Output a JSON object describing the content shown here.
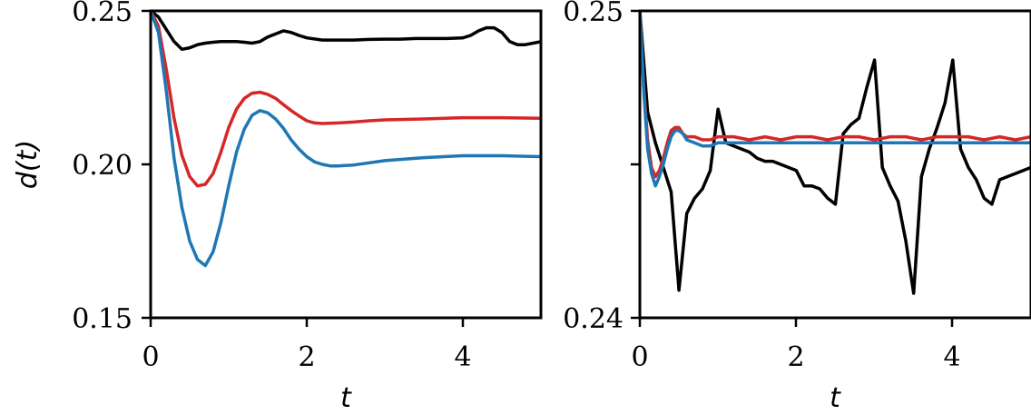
{
  "chart_data": [
    {
      "type": "line",
      "xlabel": "t",
      "ylabel": "d(t)",
      "xlim": [
        0,
        5
      ],
      "ylim": [
        0.15,
        0.25
      ],
      "x_ticks": [
        0,
        2,
        4
      ],
      "x_tick_labels": [
        "0",
        "2",
        "4"
      ],
      "y_ticks": [
        0.15,
        0.2,
        0.25
      ],
      "y_tick_labels": [
        "0.15",
        "0.20",
        "0.25"
      ],
      "grid": false,
      "series": [
        {
          "color": "#000000",
          "x": [
            0,
            0.1,
            0.2,
            0.3,
            0.4,
            0.5,
            0.6,
            0.7,
            0.8,
            0.9,
            1.0,
            1.1,
            1.2,
            1.3,
            1.4,
            1.5,
            1.6,
            1.7,
            1.8,
            1.9,
            2.0,
            2.2,
            2.4,
            2.6,
            2.8,
            3.0,
            3.2,
            3.4,
            3.6,
            3.8,
            4.0,
            4.1,
            4.2,
            4.3,
            4.4,
            4.5,
            4.6,
            4.7,
            4.8,
            5.0
          ],
          "y": [
            0.25,
            0.248,
            0.244,
            0.24,
            0.2375,
            0.238,
            0.239,
            0.2395,
            0.2398,
            0.24,
            0.24,
            0.24,
            0.2398,
            0.2395,
            0.24,
            0.2415,
            0.2425,
            0.2435,
            0.243,
            0.242,
            0.2412,
            0.2405,
            0.2405,
            0.2405,
            0.2407,
            0.2408,
            0.2408,
            0.241,
            0.241,
            0.241,
            0.2412,
            0.242,
            0.2435,
            0.2445,
            0.2445,
            0.243,
            0.24,
            0.239,
            0.239,
            0.24
          ]
        },
        {
          "color": "#d62728",
          "x": [
            0,
            0.1,
            0.2,
            0.3,
            0.4,
            0.5,
            0.6,
            0.7,
            0.8,
            0.9,
            1.0,
            1.1,
            1.2,
            1.3,
            1.4,
            1.5,
            1.6,
            1.7,
            1.8,
            1.9,
            2.0,
            2.1,
            2.2,
            2.4,
            2.6,
            2.8,
            3.0,
            3.5,
            4.0,
            4.5,
            5.0
          ],
          "y": [
            0.25,
            0.245,
            0.231,
            0.215,
            0.203,
            0.196,
            0.193,
            0.1935,
            0.197,
            0.204,
            0.212,
            0.218,
            0.2215,
            0.2232,
            0.2235,
            0.2228,
            0.2215,
            0.2195,
            0.2175,
            0.2158,
            0.2142,
            0.2135,
            0.2133,
            0.2135,
            0.2138,
            0.2142,
            0.2145,
            0.2148,
            0.2152,
            0.2152,
            0.215
          ]
        },
        {
          "color": "#1f77b4",
          "x": [
            0,
            0.1,
            0.2,
            0.3,
            0.4,
            0.5,
            0.6,
            0.7,
            0.8,
            0.9,
            1.0,
            1.1,
            1.2,
            1.3,
            1.4,
            1.5,
            1.6,
            1.7,
            1.8,
            1.9,
            2.0,
            2.1,
            2.2,
            2.3,
            2.4,
            2.6,
            2.8,
            3.0,
            3.5,
            4.0,
            4.5,
            5.0
          ],
          "y": [
            0.25,
            0.243,
            0.224,
            0.202,
            0.186,
            0.175,
            0.169,
            0.167,
            0.1715,
            0.181,
            0.193,
            0.204,
            0.2115,
            0.216,
            0.2175,
            0.2168,
            0.2148,
            0.2118,
            0.208,
            0.205,
            0.2025,
            0.2008,
            0.2,
            0.1995,
            0.1995,
            0.1998,
            0.2005,
            0.2012,
            0.2022,
            0.2028,
            0.2028,
            0.2025
          ]
        }
      ]
    },
    {
      "type": "line",
      "xlabel": "t",
      "ylabel": "",
      "xlim": [
        0,
        5
      ],
      "ylim": [
        0.24,
        0.25
      ],
      "x_ticks": [
        0,
        2,
        4
      ],
      "x_tick_labels": [
        "0",
        "2",
        "4"
      ],
      "y_ticks": [
        0.24,
        0.245,
        0.25
      ],
      "y_tick_labels": [
        "0.24",
        "",
        "0.25"
      ],
      "grid": false,
      "series": [
        {
          "color": "#000000",
          "x": [
            0,
            0.1,
            0.2,
            0.3,
            0.4,
            0.5,
            0.6,
            0.7,
            0.8,
            0.9,
            1.0,
            1.1,
            1.2,
            1.3,
            1.4,
            1.5,
            1.6,
            1.7,
            1.8,
            1.9,
            2.0,
            2.1,
            2.2,
            2.3,
            2.4,
            2.5,
            2.6,
            2.7,
            2.8,
            2.9,
            3.0,
            3.1,
            3.2,
            3.3,
            3.4,
            3.5,
            3.6,
            3.7,
            3.8,
            3.9,
            4.0,
            4.1,
            4.2,
            4.3,
            4.4,
            4.5,
            4.6,
            4.7,
            4.8,
            4.9,
            5.0
          ],
          "y": [
            0.25,
            0.2467,
            0.2457,
            0.2449,
            0.2441,
            0.2409,
            0.2434,
            0.2439,
            0.2442,
            0.2448,
            0.2468,
            0.2457,
            0.2456,
            0.2455,
            0.2454,
            0.2452,
            0.2451,
            0.2451,
            0.245,
            0.2449,
            0.2448,
            0.2443,
            0.2443,
            0.2442,
            0.2439,
            0.2437,
            0.246,
            0.2463,
            0.2465,
            0.2475,
            0.2484,
            0.2449,
            0.2443,
            0.2438,
            0.2425,
            0.2408,
            0.2446,
            0.2455,
            0.2462,
            0.247,
            0.2484,
            0.2455,
            0.2449,
            0.2445,
            0.2439,
            0.2437,
            0.2445,
            0.2446,
            0.2447,
            0.2448,
            0.2449
          ]
        },
        {
          "color": "#d62728",
          "x": [
            0,
            0.05,
            0.1,
            0.15,
            0.2,
            0.25,
            0.3,
            0.35,
            0.4,
            0.45,
            0.5,
            0.55,
            0.6,
            0.7,
            0.8,
            0.9,
            1.0,
            1.2,
            1.4,
            1.6,
            1.8,
            2.0,
            2.2,
            2.4,
            2.6,
            2.8,
            3.0,
            3.2,
            3.4,
            3.6,
            3.8,
            4.0,
            4.2,
            4.4,
            4.6,
            4.8,
            5.0
          ],
          "y": [
            0.25,
            0.2475,
            0.2458,
            0.2449,
            0.2446,
            0.2448,
            0.2452,
            0.2457,
            0.2461,
            0.2462,
            0.2462,
            0.246,
            0.2459,
            0.2459,
            0.2458,
            0.2458,
            0.2459,
            0.2459,
            0.2458,
            0.2459,
            0.2458,
            0.2459,
            0.2459,
            0.2458,
            0.2459,
            0.2459,
            0.2458,
            0.2459,
            0.2459,
            0.2458,
            0.2459,
            0.2459,
            0.2459,
            0.2458,
            0.2459,
            0.2458,
            0.2459
          ]
        },
        {
          "color": "#1f77b4",
          "x": [
            0,
            0.05,
            0.1,
            0.15,
            0.2,
            0.25,
            0.3,
            0.35,
            0.4,
            0.45,
            0.5,
            0.55,
            0.6,
            0.7,
            0.8,
            0.9,
            1.0,
            1.2,
            1.4,
            1.6,
            1.8,
            2.0,
            2.5,
            3.0,
            3.5,
            4.0,
            4.5,
            5.0
          ],
          "y": [
            0.25,
            0.2474,
            0.2455,
            0.2447,
            0.2443,
            0.2446,
            0.245,
            0.2455,
            0.2459,
            0.2461,
            0.2461,
            0.246,
            0.2458,
            0.2457,
            0.2456,
            0.2456,
            0.2457,
            0.2457,
            0.2457,
            0.2457,
            0.2457,
            0.2457,
            0.2457,
            0.2457,
            0.2457,
            0.2457,
            0.2457,
            0.2457
          ]
        }
      ]
    }
  ]
}
